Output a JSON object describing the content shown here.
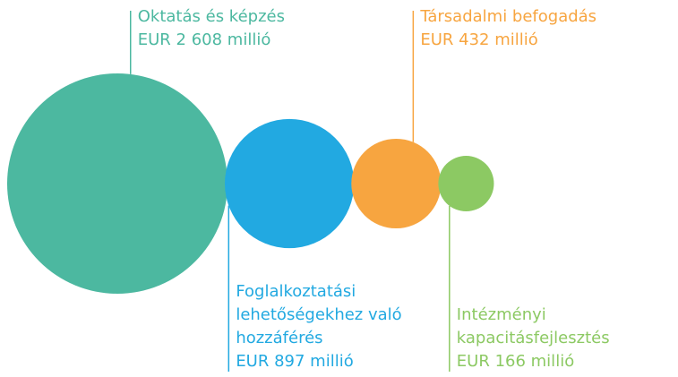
{
  "chart_data": {
    "type": "bubble",
    "categories": [
      "Oktatás és képzés",
      "Foglalkoztatási lehetőségekhez való hozzáférés",
      "Társadalmi befogadás",
      "Intézményi kapacitásfejlesztés"
    ],
    "values": [
      2608,
      897,
      432,
      166
    ],
    "value_labels": [
      "EUR 2 608 millió",
      "EUR 897 millió",
      "EUR 432 millió",
      "EUR 166 millió"
    ],
    "colors": [
      "#4cb8a0",
      "#22a9e1",
      "#f7a540",
      "#8cc963"
    ]
  }
}
